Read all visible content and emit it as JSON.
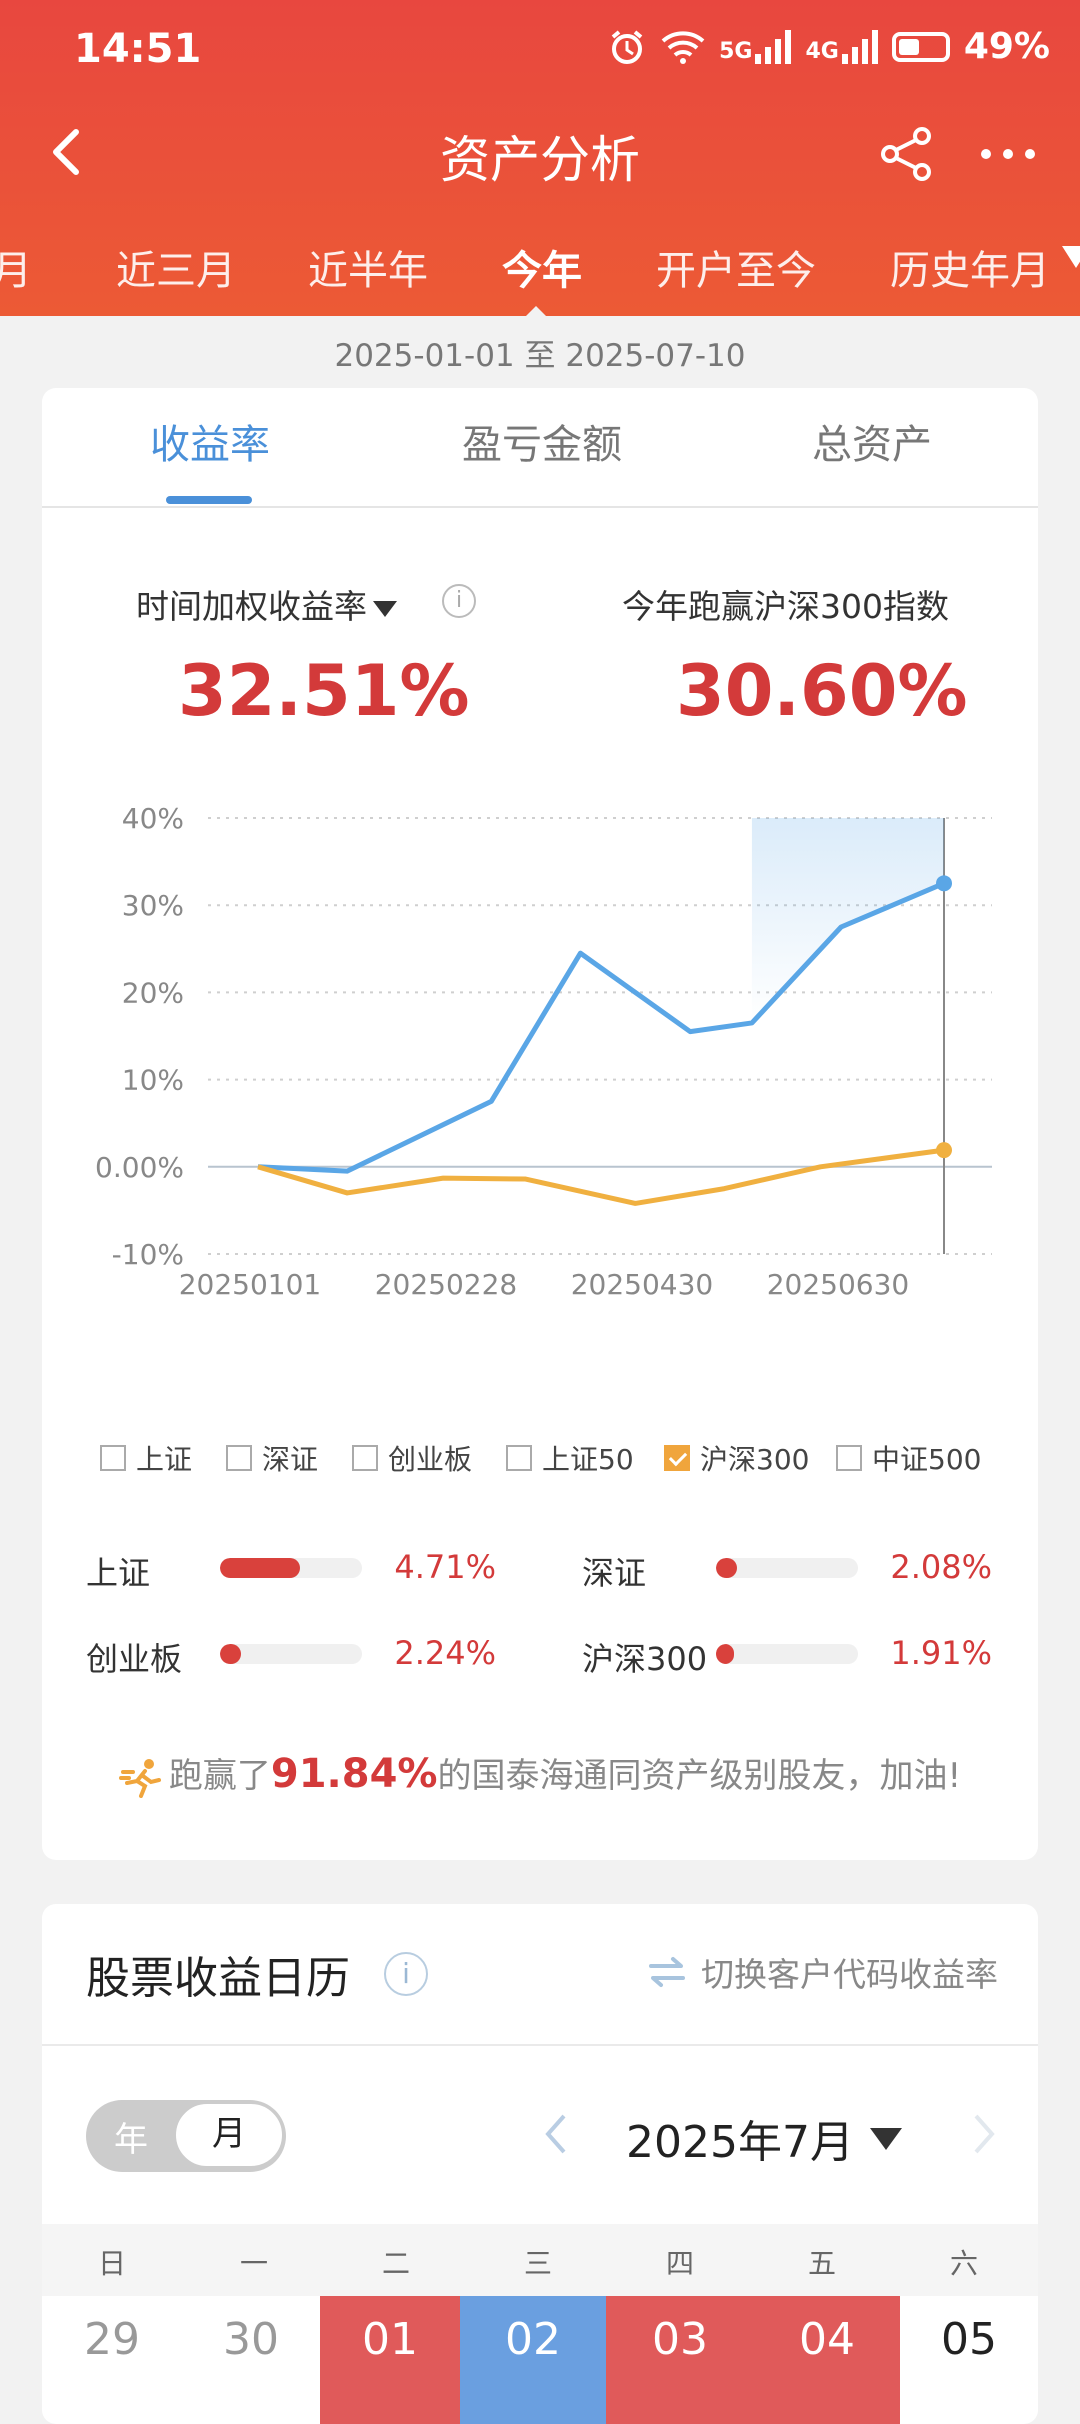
{
  "status_bar": {
    "time": "14:51",
    "network_5g": "5G",
    "network_4g": "4G",
    "battery": "49%"
  },
  "nav": {
    "title": "资产分析"
  },
  "period_tabs": [
    "月",
    "近三月",
    "近半年",
    "今年",
    "开户至今",
    "历史年月"
  ],
  "active_period": "今年",
  "date_range": "2025-01-01 至 2025-07-10",
  "segments": [
    "收益率",
    "盈亏金额",
    "总资产"
  ],
  "active_segment": "收益率",
  "metrics": {
    "left_label": "时间加权收益率",
    "left_value": "32.51%",
    "right_label": "今年跑赢沪深300指数",
    "right_value": "30.60%"
  },
  "chart_data": {
    "type": "line",
    "y_ticks": [
      "40%",
      "30%",
      "20%",
      "10%",
      "0.00%",
      "-10%"
    ],
    "ylim": [
      -10,
      40
    ],
    "x_ticks": [
      "20250101",
      "20250228",
      "20250430",
      "20250630"
    ],
    "series": [
      {
        "name": "时间加权收益率",
        "color": "#5aa6e6",
        "points": [
          [
            0,
            0.0
          ],
          [
            0.13,
            -0.5
          ],
          [
            0.34,
            7.5
          ],
          [
            0.47,
            24.5
          ],
          [
            0.63,
            15.5
          ],
          [
            0.72,
            16.5
          ],
          [
            0.85,
            27.5
          ],
          [
            1.0,
            32.51
          ]
        ]
      },
      {
        "name": "沪深300",
        "color": "#f0b040",
        "points": [
          [
            0,
            0.0
          ],
          [
            0.13,
            -3.0
          ],
          [
            0.27,
            -1.3
          ],
          [
            0.39,
            -1.4
          ],
          [
            0.55,
            -4.2
          ],
          [
            0.68,
            -2.5
          ],
          [
            0.82,
            0.0
          ],
          [
            1.0,
            1.91
          ]
        ]
      }
    ],
    "grid": true
  },
  "legend": [
    {
      "label": "上证",
      "checked": false
    },
    {
      "label": "深证",
      "checked": false
    },
    {
      "label": "创业板",
      "checked": false
    },
    {
      "label": "上证50",
      "checked": false
    },
    {
      "label": "沪深300",
      "checked": true
    },
    {
      "label": "中证500",
      "checked": false
    }
  ],
  "index_stats": [
    {
      "label": "上证",
      "value": "4.71%",
      "fill": 0.56
    },
    {
      "label": "深证",
      "value": "2.08%",
      "fill": 0.15
    },
    {
      "label": "创业板",
      "value": "2.24%",
      "fill": 0.15
    },
    {
      "label": "沪深300",
      "value": "1.91%",
      "fill": 0.13
    }
  ],
  "beat": {
    "prefix": "跑赢了",
    "percent": "91.84%",
    "suffix": "的国泰海通同资产级别股友，加油!"
  },
  "calendar": {
    "title": "股票收益日历",
    "switch_label": "切换客户代码收益率",
    "toggle_year": "年",
    "toggle_month": "月",
    "month": "2025年7月",
    "weekdays": [
      "日",
      "一",
      "二",
      "三",
      "四",
      "五",
      "六"
    ],
    "days": [
      {
        "d": "29",
        "state": "other"
      },
      {
        "d": "30",
        "state": "other"
      },
      {
        "d": "01",
        "state": "up"
      },
      {
        "d": "02",
        "state": "down"
      },
      {
        "d": "03",
        "state": "up"
      },
      {
        "d": "04",
        "state": "up"
      },
      {
        "d": "05",
        "state": "none"
      }
    ],
    "colors": {
      "up": "#e05a5a",
      "down": "#6a9fe0"
    }
  }
}
